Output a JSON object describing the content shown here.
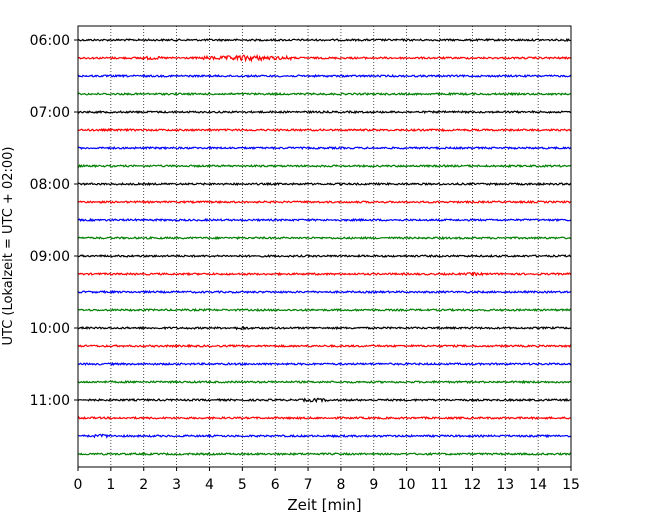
{
  "chart_data": {
    "type": "line",
    "xlabel": "Zeit  [min]",
    "ylabel": "UTC (Lokalzeit = UTC + 02:00)",
    "xlim": [
      0,
      15
    ],
    "x_ticks": [
      "0",
      "1",
      "2",
      "3",
      "4",
      "5",
      "6",
      "7",
      "8",
      "9",
      "10",
      "11",
      "12",
      "13",
      "14",
      "15"
    ],
    "y_tick_labels": [
      "06:00",
      "07:00",
      "08:00",
      "09:00",
      "10:00",
      "11:00"
    ],
    "grid": "vertical-dotted",
    "trace_colors": [
      "#000000",
      "#ff0000",
      "#0000ff",
      "#008000"
    ],
    "trace_interval_minutes": 15,
    "trace_start": "06:00",
    "trace_count": 24,
    "highlight_amplitudes": [
      {
        "trace": 1,
        "x_start": 3.8,
        "x_end": 6.5,
        "amp": 3.0
      },
      {
        "trace": 1,
        "x_start": 1.8,
        "x_end": 2.6,
        "amp": 1.8
      },
      {
        "trace": 22,
        "x_start": 0.5,
        "x_end": 1.0,
        "amp": 2.0
      },
      {
        "trace": 20,
        "x_start": 6.8,
        "x_end": 7.6,
        "amp": 2.0
      },
      {
        "trace": 16,
        "x_start": 4.8,
        "x_end": 5.2,
        "amp": 1.8
      },
      {
        "trace": 13,
        "x_start": 11.8,
        "x_end": 12.3,
        "amp": 1.6
      }
    ]
  }
}
